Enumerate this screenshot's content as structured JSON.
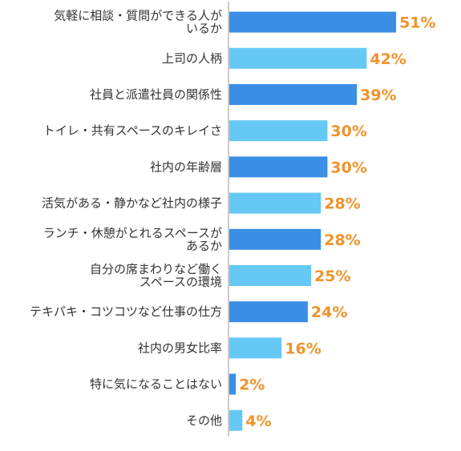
{
  "chart_data": {
    "type": "bar",
    "orientation": "horizontal",
    "categories": [
      [
        "気軽に相談・質問ができる人が",
        "いるか"
      ],
      [
        "上司の人柄"
      ],
      [
        "社員と派遣社員の関係性"
      ],
      [
        "トイレ・共有スペースのキレイさ"
      ],
      [
        "社内の年齢層"
      ],
      [
        "活気がある・静かなど社内の様子"
      ],
      [
        "ランチ・休憩がとれるスペースが",
        "あるか"
      ],
      [
        "自分の席まわりなど働く",
        "スペースの環境"
      ],
      [
        "テキパキ・コツコツなど仕事の仕方"
      ],
      [
        "社内の男女比率"
      ],
      [
        "特に気になることはない"
      ],
      [
        "その他"
      ]
    ],
    "values": [
      51,
      42,
      39,
      30,
      30,
      28,
      28,
      25,
      24,
      16,
      2,
      4
    ],
    "value_labels": [
      "51%",
      "42%",
      "39%",
      "30%",
      "30%",
      "28%",
      "28%",
      "25%",
      "24%",
      "16%",
      "2%",
      "4%"
    ],
    "bar_colors": [
      "#3a8ee6",
      "#66c8f5",
      "#3a8ee6",
      "#66c8f5",
      "#3a8ee6",
      "#66c8f5",
      "#3a8ee6",
      "#66c8f5",
      "#3a8ee6",
      "#66c8f5",
      "#3a8ee6",
      "#66c8f5"
    ],
    "value_label_color": "#f0932b",
    "axis_color": "#999999",
    "xlim": [
      0,
      60
    ],
    "grid": false,
    "legend": "none"
  }
}
